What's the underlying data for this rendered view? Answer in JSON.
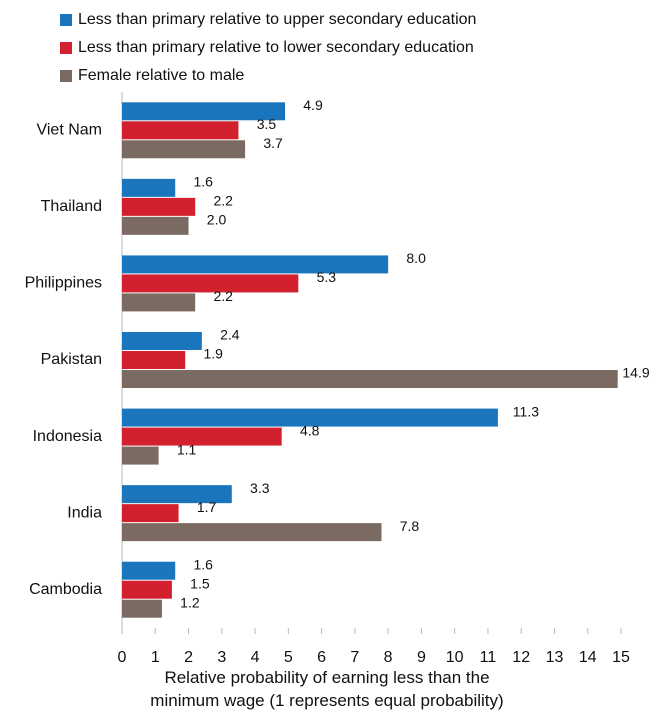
{
  "chart_data": {
    "type": "bar",
    "orientation": "horizontal",
    "categories": [
      "Viet Nam",
      "Thailand",
      "Philippines",
      "Pakistan",
      "Indonesia",
      "India",
      "Cambodia"
    ],
    "series": [
      {
        "name": "Less than primary relative to upper secondary education",
        "color": "#1b75bc",
        "values": [
          4.9,
          1.6,
          8.0,
          2.4,
          11.3,
          3.3,
          1.6
        ],
        "value_labels": [
          "4.9",
          "1.6",
          "8.0",
          "2.4",
          "11.3",
          "3.3",
          "1.6"
        ]
      },
      {
        "name": "Less than primary relative to lower secondary education",
        "color": "#d2202f",
        "values": [
          3.5,
          2.2,
          5.3,
          1.9,
          4.8,
          1.7,
          1.5
        ],
        "value_labels": [
          "3.5",
          "2.2",
          "5.3",
          "1.9",
          "4.8",
          "1.7",
          "1.5"
        ]
      },
      {
        "name": "Female relative to male",
        "color": "#7a6a62",
        "values": [
          3.7,
          2.0,
          2.2,
          14.9,
          1.1,
          7.8,
          1.2
        ],
        "value_labels": [
          "3.7",
          "2.0",
          "2.2",
          "14.9",
          "1.1",
          "7.8",
          "1.2"
        ]
      }
    ],
    "xlabel": "Relative probability of earning less than the minimum wage (1 represents equal probability)",
    "xlim": [
      0,
      15
    ],
    "xticks": [
      0,
      1,
      2,
      3,
      4,
      5,
      6,
      7,
      8,
      9,
      10,
      11,
      12,
      13,
      14,
      15
    ],
    "grid": false,
    "legend": "top"
  }
}
